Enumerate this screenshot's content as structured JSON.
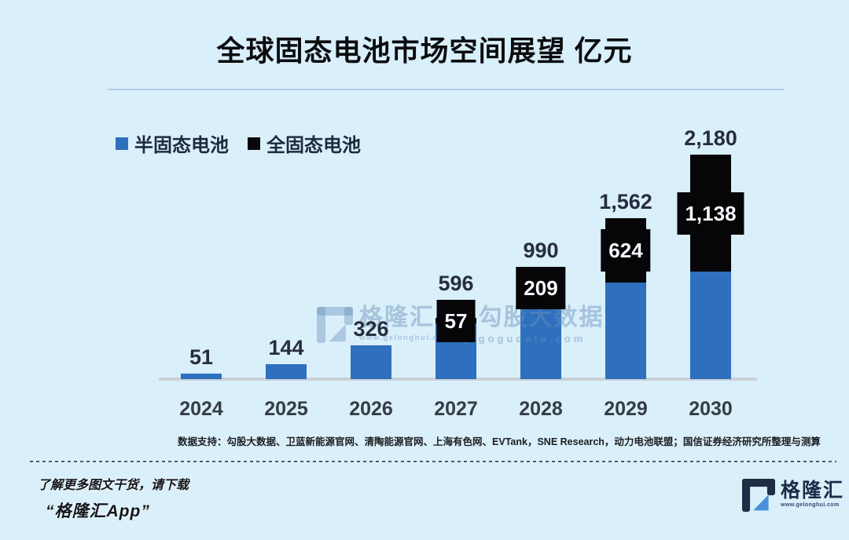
{
  "title": "全球固态电池市场空间展望 亿元",
  "legend": {
    "items": [
      {
        "label": "半固态电池",
        "color": "#2e6fbe"
      },
      {
        "label": "全固态电池",
        "color": "#08090b"
      }
    ]
  },
  "chart_data": {
    "type": "bar",
    "stacked": true,
    "title": "全球固态电池市场空间展望",
    "unit": "亿元",
    "categories": [
      "2024",
      "2025",
      "2026",
      "2027",
      "2028",
      "2029",
      "2030"
    ],
    "series": [
      {
        "name": "半固态电池",
        "color": "#2e6fbe",
        "values": [
          51,
          144,
          326,
          539,
          781,
          938,
          1042
        ]
      },
      {
        "name": "全固态电池",
        "color": "#060608",
        "values": [
          0,
          0,
          0,
          57,
          209,
          624,
          1138
        ]
      }
    ],
    "totals": [
      51,
      144,
      326,
      596,
      990,
      1562,
      2180
    ],
    "total_labels": [
      "51",
      "144",
      "326",
      "596",
      "990",
      "1,562",
      "2,180"
    ],
    "segment_labels": [
      "",
      "",
      "",
      "57",
      "209",
      "624",
      "1,138"
    ],
    "ylim": [
      0,
      2180
    ],
    "grid": false,
    "legend_position": "top-left"
  },
  "watermark": {
    "brand": "格隆汇",
    "brand_url": "www.gelonghui.com",
    "data_brand": "勾股大数据",
    "data_url": "gogudata.com"
  },
  "source_note": "数据支持：勾股大数据、卫蓝新能源官网、清陶能源官网、上海有色网、EVTank，SNE Research，动力电池联盟；国信证券经济研究所整理与测算",
  "footer": {
    "promo_line1": "了解更多图文干货，请下载",
    "promo_line2": "“格隆汇App”",
    "brand": "格隆汇",
    "brand_url": "www.gelonghui.com"
  },
  "colors": {
    "background": "#d9effa",
    "bar_blue": "#2e6fbe",
    "bar_black": "#060608",
    "total_label": "#272d40",
    "logo_navy": "#1e2c44",
    "logo_blue": "#4a90d9"
  }
}
